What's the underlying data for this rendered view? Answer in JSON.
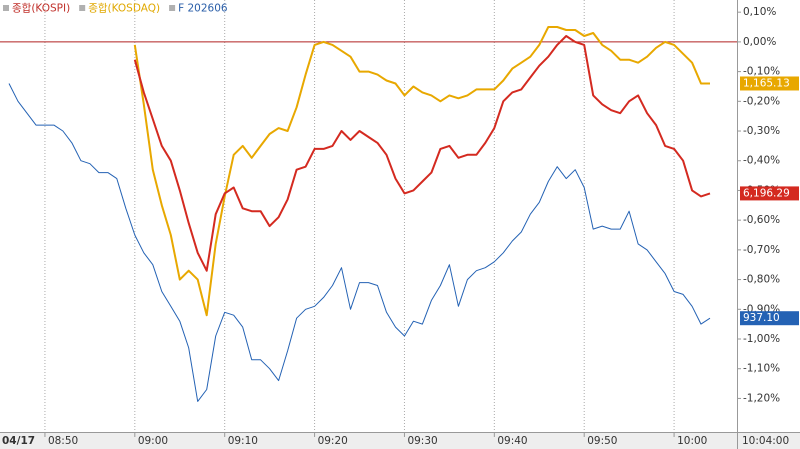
{
  "chart_data": {
    "type": "line",
    "legend": [
      {
        "text": "종합(KOSPI)",
        "color": "#c0302a"
      },
      {
        "text": "종합(KOSDAQ)",
        "color": "#e0a800"
      },
      {
        "text": "F 202606",
        "color": "#2a5ea8"
      }
    ],
    "date_label": "04/17",
    "time_label": "10:04:00",
    "x": [
      "08:46",
      "08:47",
      "08:48",
      "08:49",
      "08:50",
      "08:51",
      "08:52",
      "08:53",
      "08:54",
      "08:55",
      "08:56",
      "08:57",
      "08:58",
      "08:59",
      "09:00",
      "09:01",
      "09:02",
      "09:03",
      "09:04",
      "09:05",
      "09:06",
      "09:07",
      "09:08",
      "09:09",
      "09:10",
      "09:11",
      "09:12",
      "09:13",
      "09:14",
      "09:15",
      "09:16",
      "09:17",
      "09:18",
      "09:19",
      "09:20",
      "09:21",
      "09:22",
      "09:23",
      "09:24",
      "09:25",
      "09:26",
      "09:27",
      "09:28",
      "09:29",
      "09:30",
      "09:31",
      "09:32",
      "09:33",
      "09:34",
      "09:35",
      "09:36",
      "09:37",
      "09:38",
      "09:39",
      "09:40",
      "09:41",
      "09:42",
      "09:43",
      "09:44",
      "09:45",
      "09:46",
      "09:47",
      "09:48",
      "09:49",
      "09:50",
      "09:51",
      "09:52",
      "09:53",
      "09:54",
      "09:55",
      "09:56",
      "09:57",
      "09:58",
      "09:59",
      "10:00",
      "10:01",
      "10:02",
      "10:03",
      "10:04"
    ],
    "series": [
      {
        "name": "종합(KOSPI)",
        "color": "#d42a20",
        "last_label": "6,196.29",
        "values": [
          null,
          null,
          null,
          null,
          null,
          null,
          null,
          null,
          null,
          null,
          null,
          null,
          null,
          null,
          -0.06,
          -0.17,
          -0.26,
          -0.35,
          -0.4,
          -0.5,
          -0.61,
          -0.71,
          -0.77,
          -0.58,
          -0.51,
          -0.49,
          -0.56,
          -0.57,
          -0.57,
          -0.62,
          -0.59,
          -0.53,
          -0.43,
          -0.42,
          -0.36,
          -0.36,
          -0.35,
          -0.3,
          -0.33,
          -0.3,
          -0.32,
          -0.34,
          -0.38,
          -0.46,
          -0.51,
          -0.5,
          -0.47,
          -0.44,
          -0.36,
          -0.35,
          -0.39,
          -0.38,
          -0.38,
          -0.34,
          -0.29,
          -0.2,
          -0.17,
          -0.16,
          -0.12,
          -0.08,
          -0.05,
          -0.01,
          0.02,
          0.0,
          -0.01,
          -0.18,
          -0.21,
          -0.23,
          -0.24,
          -0.2,
          -0.18,
          -0.24,
          -0.28,
          -0.35,
          -0.36,
          -0.4,
          -0.5,
          -0.52,
          -0.51
        ]
      },
      {
        "name": "종합(KOSDAQ)",
        "color": "#e8a800",
        "last_label": "1,165.13",
        "values": [
          null,
          null,
          null,
          null,
          null,
          null,
          null,
          null,
          null,
          null,
          null,
          null,
          null,
          null,
          -0.01,
          -0.21,
          -0.43,
          -0.55,
          -0.65,
          -0.8,
          -0.77,
          -0.8,
          -0.92,
          -0.68,
          -0.52,
          -0.38,
          -0.35,
          -0.39,
          -0.35,
          -0.31,
          -0.29,
          -0.3,
          -0.22,
          -0.11,
          -0.01,
          0.0,
          -0.01,
          -0.03,
          -0.05,
          -0.1,
          -0.1,
          -0.11,
          -0.13,
          -0.14,
          -0.18,
          -0.15,
          -0.17,
          -0.18,
          -0.2,
          -0.18,
          -0.19,
          -0.18,
          -0.16,
          -0.16,
          -0.16,
          -0.13,
          -0.09,
          -0.07,
          -0.05,
          -0.01,
          0.05,
          0.05,
          0.04,
          0.04,
          0.02,
          0.03,
          -0.01,
          -0.03,
          -0.06,
          -0.06,
          -0.07,
          -0.05,
          -0.02,
          0.0,
          -0.01,
          -0.04,
          -0.07,
          -0.14,
          -0.14
        ]
      },
      {
        "name": "F 202606",
        "color": "#2462b4",
        "last_label": "937.10",
        "values": [
          -0.14,
          -0.2,
          -0.24,
          -0.28,
          -0.28,
          -0.28,
          -0.3,
          -0.34,
          -0.4,
          -0.41,
          -0.44,
          -0.44,
          -0.46,
          -0.56,
          -0.65,
          -0.71,
          -0.75,
          -0.84,
          -0.89,
          -0.94,
          -1.03,
          -1.21,
          -1.17,
          -0.99,
          -0.91,
          -0.92,
          -0.96,
          -1.07,
          -1.07,
          -1.1,
          -1.14,
          -1.04,
          -0.93,
          -0.9,
          -0.89,
          -0.86,
          -0.82,
          -0.76,
          -0.9,
          -0.81,
          -0.81,
          -0.82,
          -0.91,
          -0.96,
          -0.99,
          -0.94,
          -0.95,
          -0.87,
          -0.82,
          -0.75,
          -0.89,
          -0.8,
          -0.77,
          -0.76,
          -0.74,
          -0.71,
          -0.67,
          -0.64,
          -0.58,
          -0.54,
          -0.47,
          -0.42,
          -0.46,
          -0.43,
          -0.49,
          -0.63,
          -0.62,
          -0.63,
          -0.63,
          -0.57,
          -0.68,
          -0.7,
          -0.74,
          -0.78,
          -0.84,
          -0.85,
          -0.89,
          -0.95,
          -0.93
        ]
      }
    ],
    "xlim": [
      "08:45",
      "10:07"
    ],
    "xticks": [
      "08:50",
      "09:00",
      "09:10",
      "09:20",
      "09:30",
      "09:40",
      "09:50",
      "10:00"
    ],
    "ylim": [
      -1.313,
      0.141
    ],
    "yticks": [
      {
        "value": 0.1,
        "label": "0,10%"
      },
      {
        "value": 0,
        "label": "0,00%"
      },
      {
        "value": -0.1,
        "label": "-0,10%"
      },
      {
        "value": -0.2,
        "label": "-0,20%"
      },
      {
        "value": -0.3,
        "label": "-0,30%"
      },
      {
        "value": -0.4,
        "label": "-0,40%"
      },
      {
        "value": -0.5,
        "label": "-0,50%"
      },
      {
        "value": -0.6,
        "label": "-0,60%"
      },
      {
        "value": -0.7,
        "label": "-0,70%"
      },
      {
        "value": -0.8,
        "label": "-0,80%"
      },
      {
        "value": -0.9,
        "label": "-0,90%"
      },
      {
        "value": -1,
        "label": "-1,00%"
      },
      {
        "value": -1.1,
        "label": "-1,10%"
      },
      {
        "value": -1.2,
        "label": "-1,20%"
      }
    ],
    "zero_line": {
      "value": 0,
      "color": "#b02020"
    },
    "grid": true
  }
}
